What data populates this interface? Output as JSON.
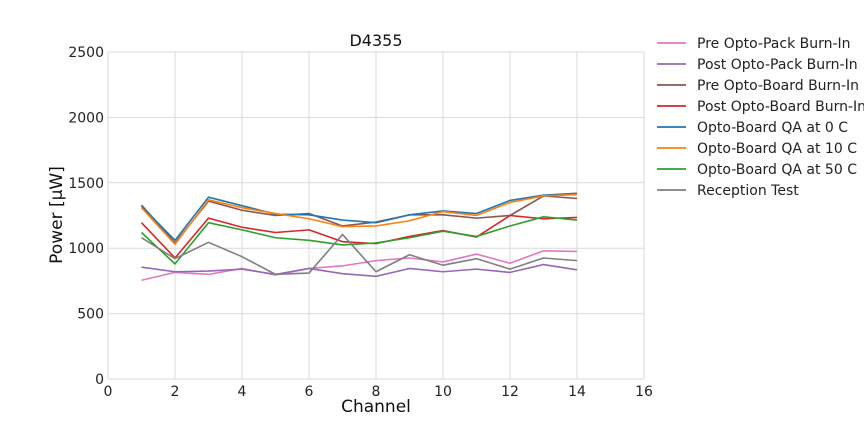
{
  "chart_data": {
    "type": "line",
    "title": "D4355",
    "xlabel": "Channel",
    "ylabel": "Power [μW]",
    "xlim": [
      0,
      16
    ],
    "ylim": [
      0,
      2500
    ],
    "xticks": [
      "0",
      "2",
      "4",
      "6",
      "8",
      "10",
      "12",
      "14",
      "16"
    ],
    "yticks": [
      "0",
      "500",
      "1000",
      "1500",
      "2000",
      "2500"
    ],
    "grid": true,
    "legend_position": "outside-right",
    "x": [
      1,
      2,
      3,
      4,
      5,
      6,
      7,
      8,
      9,
      10,
      11,
      12,
      13,
      14
    ],
    "series": [
      {
        "name": "Pre Opto-Pack Burn-In",
        "color": "#e377c2",
        "values": [
          755,
          815,
          800,
          845,
          795,
          845,
          865,
          905,
          925,
          895,
          955,
          885,
          980,
          975
        ]
      },
      {
        "name": "Post Opto-Pack Burn-In",
        "color": "#9467bd",
        "values": [
          855,
          820,
          825,
          840,
          800,
          845,
          805,
          785,
          845,
          820,
          840,
          815,
          875,
          835
        ]
      },
      {
        "name": "Pre Opto-Board Burn-In",
        "color": "#8c564b",
        "values": [
          1330,
          1040,
          1360,
          1290,
          1250,
          1265,
          1170,
          1200,
          1255,
          1255,
          1230,
          1250,
          1400,
          1380
        ]
      },
      {
        "name": "Post Opto-Board Burn-In",
        "color": "#d62728",
        "values": [
          1195,
          925,
          1230,
          1160,
          1120,
          1140,
          1050,
          1035,
          1090,
          1135,
          1085,
          1250,
          1225,
          1235
        ]
      },
      {
        "name": "Opto-Board QA at 0 C",
        "color": "#1f77b4",
        "values": [
          1320,
          1060,
          1390,
          1325,
          1260,
          1255,
          1215,
          1195,
          1255,
          1285,
          1265,
          1365,
          1405,
          1420
        ]
      },
      {
        "name": "Opto-Board QA at 10 C",
        "color": "#ff7f0e",
        "values": [
          1310,
          1030,
          1370,
          1310,
          1265,
          1225,
          1165,
          1170,
          1210,
          1280,
          1250,
          1350,
          1400,
          1410
        ]
      },
      {
        "name": "Opto-Board QA at 50 C",
        "color": "#2ca02c",
        "values": [
          1120,
          880,
          1195,
          1140,
          1080,
          1060,
          1025,
          1040,
          1080,
          1130,
          1090,
          1170,
          1240,
          1215
        ]
      },
      {
        "name": "Reception Test",
        "color": "#7f7f7f",
        "values": [
          1080,
          920,
          1045,
          935,
          800,
          810,
          1105,
          820,
          950,
          870,
          920,
          840,
          925,
          905
        ]
      }
    ]
  }
}
